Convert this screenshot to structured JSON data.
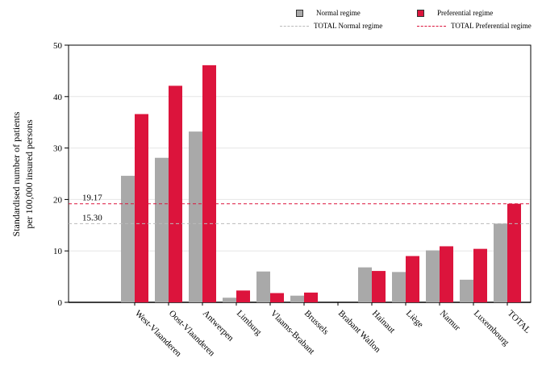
{
  "chart_data": {
    "type": "bar",
    "ylabel_line1": "Standardised number of patients",
    "ylabel_line2": "per 100,000 insured persons",
    "ylim": [
      0,
      50
    ],
    "yticks": [
      "0",
      "10",
      "20",
      "30",
      "40",
      "50"
    ],
    "categories": [
      "West-Vlaanderen",
      "Oost-Vlaanderen",
      "Antwerpen",
      "Limburg",
      "Vlaams-Brabant",
      "Brussels",
      "Brabant Wallon",
      "Hainaut",
      "Liège",
      "Namur",
      "Luxembourg",
      "TOTAL"
    ],
    "series": [
      {
        "name": "Normal regime",
        "color": "#a9a9a9",
        "values": [
          24.6,
          28.1,
          33.2,
          0.9,
          6.0,
          1.3,
          0,
          6.8,
          5.9,
          10.1,
          4.4,
          15.3
        ]
      },
      {
        "name": "Preferential regime",
        "color": "#dc143c",
        "values": [
          36.6,
          42.1,
          46.1,
          2.3,
          1.8,
          1.9,
          0,
          6.1,
          9.0,
          10.9,
          10.4,
          19.17
        ]
      }
    ],
    "reference_lines": [
      {
        "name": "TOTAL Normal regime",
        "value": 15.3,
        "label": "15.30",
        "color": "#bbbbbb"
      },
      {
        "name": "TOTAL Preferential regime",
        "value": 19.17,
        "label": "19.17",
        "color": "#dc143c"
      }
    ],
    "grid": "horizontal",
    "legend_position": "top-right"
  }
}
